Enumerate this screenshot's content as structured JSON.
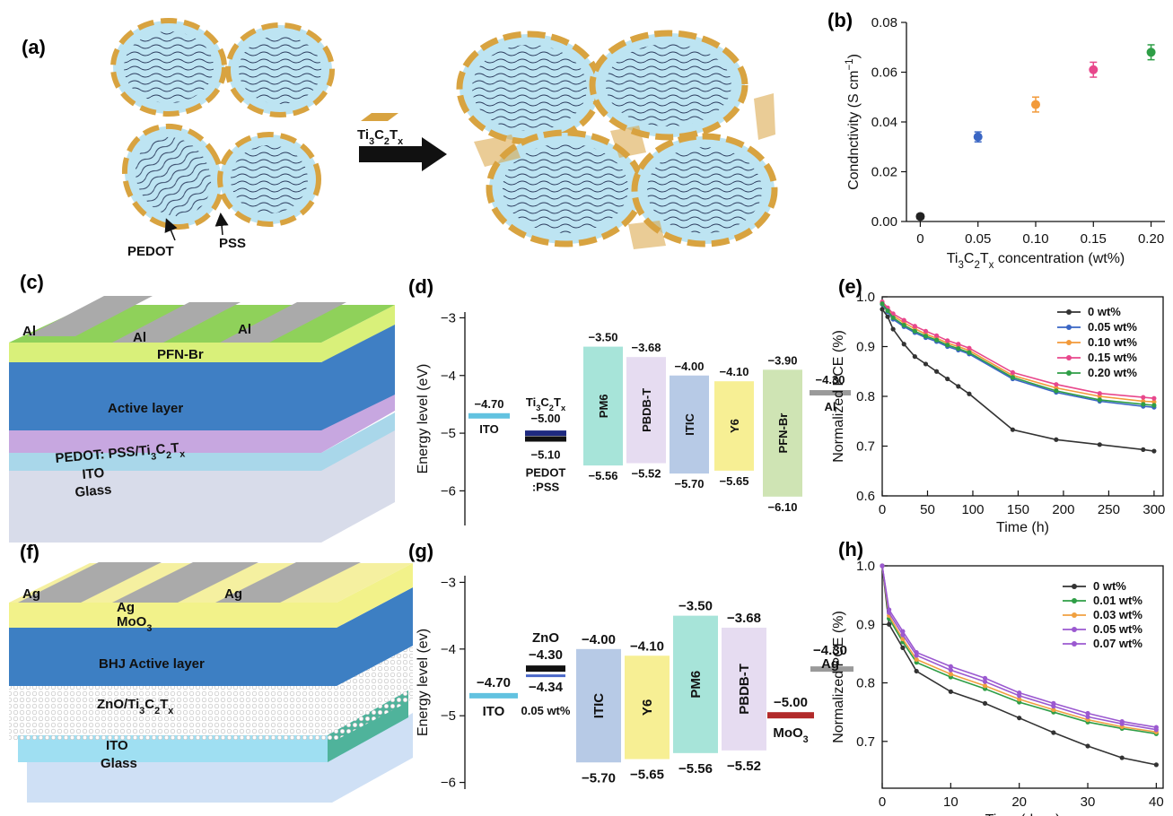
{
  "panel_labels": {
    "a": "(a)",
    "b": "(b)",
    "c": "(c)",
    "d": "(d)",
    "e": "(e)",
    "f": "(f)",
    "g": "(g)",
    "h": "(h)"
  },
  "colors": {
    "series_0": "#333333",
    "series_005": "#3a66c4",
    "series_010": "#f29a3a",
    "series_015": "#e8478c",
    "series_020": "#2e9e46",
    "series_007": "#9b59d0",
    "series_003": "#f0a040",
    "ito": "#62c2e0",
    "pm6": "#a7e4d9",
    "pbdbt": "#e6dcf1",
    "itic": "#b7cae6",
    "y6": "#f7ef94",
    "pfnbr": "#cfe4b4",
    "al": "#9a9a9a",
    "zno": "#111111",
    "moo3": "#b22a2a",
    "pedot": "#1f2a80",
    "mxene": "#d8a340",
    "micelle": "#bde4f2"
  },
  "panel_a": {
    "arrow_label": "Ti3C2Tx",
    "pedot_label": "PEDOT",
    "pss_label": "PSS"
  },
  "panel_c": {
    "al_labels": [
      "Al",
      "Al",
      "Al"
    ],
    "layers": [
      "PFN-Br",
      "Active layer",
      "PEDOT: PSS/Ti3C2Tx",
      "ITO",
      "Glass"
    ]
  },
  "panel_f": {
    "ag_labels": [
      "Ag",
      "Ag",
      "Ag"
    ],
    "layers": [
      "MoO3",
      "BHJ Active layer",
      "ZnO/Ti3C2Tx",
      "ITO",
      "Glass"
    ]
  },
  "chart_data": [
    {
      "panel": "b",
      "type": "scatter",
      "x": [
        0,
        0.05,
        0.1,
        0.15,
        0.2
      ],
      "y": [
        0.002,
        0.034,
        0.047,
        0.061,
        0.068
      ],
      "err": [
        0.001,
        0.002,
        0.003,
        0.003,
        0.003
      ],
      "point_colors": [
        "#222222",
        "#3a66c4",
        "#f29a3a",
        "#e8478c",
        "#2e9e46"
      ],
      "xticks": [
        "0",
        "0.05",
        "0.10",
        "0.15",
        "0.20"
      ],
      "yticks": [
        "0.00",
        "0.02",
        "0.04",
        "0.06",
        "0.08"
      ],
      "xlim": [
        -0.012,
        0.212
      ],
      "ylim": [
        0,
        0.08
      ],
      "xlabel": "Ti3C2Tx concentration (wt%)",
      "ylabel": "Condnctivity (S cm−1)"
    },
    {
      "panel": "d",
      "type": "energy-level",
      "ylabel": "Energy level (eV)",
      "ylim": [
        -6.6,
        -2.9
      ],
      "yticks": [
        "−3",
        "−4",
        "−5",
        "−6"
      ],
      "electrodes": [
        {
          "label": "ITO",
          "value": -4.7,
          "value_label": "−4.70",
          "color": "#62c2e0"
        },
        {
          "label": "Al",
          "value": -4.3,
          "value_label": "−4.30",
          "color": "#9a9a9a"
        }
      ],
      "htl": {
        "label_top": "Ti3C2Tx",
        "label_bottom": "PEDOT",
        "label_bottom2": ":PSS",
        "v1": -5.0,
        "v1_label": "−5.00",
        "v2": -5.1,
        "v2_label": "−5.10"
      },
      "boxes": [
        {
          "label": "PM6",
          "top": -3.5,
          "bottom": -5.56,
          "top_label": "−3.50",
          "bottom_label": "−5.56",
          "color": "#a7e4d9"
        },
        {
          "label": "PBDB-T",
          "top": -3.68,
          "bottom": -5.52,
          "top_label": "−3.68",
          "bottom_label": "−5.52",
          "color": "#e6dcf1"
        },
        {
          "label": "ITIC",
          "top": -4.0,
          "bottom": -5.7,
          "top_label": "−4.00",
          "bottom_label": "−5.70",
          "color": "#b7cae6"
        },
        {
          "label": "Y6",
          "top": -4.1,
          "bottom": -5.65,
          "top_label": "−4.10",
          "bottom_label": "−5.65",
          "color": "#f7ef94"
        },
        {
          "label": "PFN-Br",
          "top": -3.9,
          "bottom": -6.1,
          "top_label": "−3.90",
          "bottom_label": "−6.10",
          "color": "#cfe4b4"
        }
      ]
    },
    {
      "panel": "e",
      "type": "line",
      "xlabel": "Time (h)",
      "ylabel": "Normalized PCE (%)",
      "xlim": [
        0,
        310
      ],
      "ylim": [
        0.6,
        1.0
      ],
      "xticks": [
        "0",
        "50",
        "100",
        "150",
        "200",
        "250",
        "300"
      ],
      "yticks": [
        "0.6",
        "0.7",
        "0.8",
        "0.9",
        "1.0"
      ],
      "series": [
        {
          "name": "0 wt%",
          "color": "#333333",
          "x": [
            0,
            6,
            12,
            24,
            36,
            48,
            60,
            72,
            84,
            96,
            144,
            192,
            240,
            288,
            300
          ],
          "y": [
            0.975,
            0.96,
            0.935,
            0.905,
            0.88,
            0.865,
            0.85,
            0.835,
            0.82,
            0.805,
            0.733,
            0.713,
            0.703,
            0.693,
            0.69
          ]
        },
        {
          "name": "0.05 wt%",
          "color": "#3a66c4",
          "x": [
            0,
            6,
            12,
            24,
            36,
            48,
            60,
            72,
            84,
            96,
            144,
            192,
            240,
            288,
            300
          ],
          "y": [
            0.985,
            0.97,
            0.955,
            0.94,
            0.928,
            0.918,
            0.91,
            0.9,
            0.893,
            0.885,
            0.835,
            0.808,
            0.79,
            0.78,
            0.778
          ]
        },
        {
          "name": "0.10 wt%",
          "color": "#f29a3a",
          "x": [
            0,
            6,
            12,
            24,
            36,
            48,
            60,
            72,
            84,
            96,
            144,
            192,
            240,
            288,
            300
          ],
          "y": [
            0.988,
            0.975,
            0.962,
            0.948,
            0.936,
            0.925,
            0.917,
            0.907,
            0.9,
            0.892,
            0.842,
            0.817,
            0.8,
            0.79,
            0.789
          ]
        },
        {
          "name": "0.15 wt%",
          "color": "#e8478c",
          "x": [
            0,
            6,
            12,
            24,
            36,
            48,
            60,
            72,
            84,
            96,
            144,
            192,
            240,
            288,
            300
          ],
          "y": [
            0.99,
            0.978,
            0.966,
            0.953,
            0.941,
            0.931,
            0.922,
            0.912,
            0.905,
            0.897,
            0.848,
            0.824,
            0.806,
            0.798,
            0.796
          ]
        },
        {
          "name": "0.20 wt%",
          "color": "#2e9e46",
          "x": [
            0,
            6,
            12,
            24,
            36,
            48,
            60,
            72,
            84,
            96,
            144,
            192,
            240,
            288,
            300
          ],
          "y": [
            0.986,
            0.972,
            0.958,
            0.943,
            0.931,
            0.921,
            0.913,
            0.903,
            0.896,
            0.888,
            0.838,
            0.811,
            0.793,
            0.784,
            0.782
          ]
        }
      ]
    },
    {
      "panel": "g",
      "type": "energy-level",
      "ylabel": "Energy level (ev)",
      "ylim": [
        -6.1,
        -2.9
      ],
      "yticks": [
        "−3",
        "−4",
        "−5",
        "−6"
      ],
      "electrodes": [
        {
          "label": "ITO",
          "value": -4.7,
          "value_label": "−4.70",
          "color": "#62c2e0"
        },
        {
          "label": "Ag",
          "value": -4.3,
          "value_label": "−4.30",
          "color": "#9a9a9a"
        },
        {
          "label": "MoO3",
          "value": -5.0,
          "value_label": "−5.00",
          "color": "#b22a2a"
        }
      ],
      "etl": {
        "label_top": "ZnO",
        "label_bottom": "0.05 wt%",
        "v1": -4.3,
        "v1_label": "−4.30",
        "v2": -4.34,
        "v2_label": "−4.34"
      },
      "boxes": [
        {
          "label": "ITIC",
          "top": -4.0,
          "bottom": -5.7,
          "top_label": "−4.00",
          "bottom_label": "−5.70",
          "color": "#b7cae6"
        },
        {
          "label": "Y6",
          "top": -4.1,
          "bottom": -5.65,
          "top_label": "−4.10",
          "bottom_label": "−5.65",
          "color": "#f7ef94"
        },
        {
          "label": "PM6",
          "top": -3.5,
          "bottom": -5.56,
          "top_label": "−3.50",
          "bottom_label": "−5.56",
          "color": "#a7e4d9"
        },
        {
          "label": "PBDB-T",
          "top": -3.68,
          "bottom": -5.52,
          "top_label": "−3.68",
          "bottom_label": "−5.52",
          "color": "#e6dcf1"
        }
      ]
    },
    {
      "panel": "h",
      "type": "line",
      "xlabel": "Time (days)",
      "ylabel": "Normalized PCE (%)",
      "xlim": [
        0,
        41
      ],
      "ylim": [
        0.62,
        1.0
      ],
      "xticks": [
        "0",
        "10",
        "20",
        "30",
        "40"
      ],
      "yticks": [
        "0.7",
        "0.8",
        "0.9",
        "1.0"
      ],
      "series": [
        {
          "name": "0 wt%",
          "color": "#333333",
          "x": [
            0,
            1,
            3,
            5,
            10,
            15,
            20,
            25,
            30,
            35,
            40
          ],
          "y": [
            1.0,
            0.9,
            0.86,
            0.82,
            0.785,
            0.765,
            0.74,
            0.715,
            0.692,
            0.672,
            0.66
          ]
        },
        {
          "name": "0.01 wt%",
          "color": "#2e9e46",
          "x": [
            0,
            1,
            3,
            5,
            10,
            15,
            20,
            25,
            30,
            35,
            40
          ],
          "y": [
            1.0,
            0.91,
            0.87,
            0.835,
            0.81,
            0.79,
            0.767,
            0.75,
            0.733,
            0.722,
            0.713
          ]
        },
        {
          "name": "0.03 wt%",
          "color": "#f0a040",
          "x": [
            0,
            1,
            3,
            5,
            10,
            15,
            20,
            25,
            30,
            35,
            40
          ],
          "y": [
            1.0,
            0.915,
            0.875,
            0.84,
            0.815,
            0.795,
            0.772,
            0.754,
            0.737,
            0.725,
            0.716
          ]
        },
        {
          "name": "0.05 wt%",
          "color": "#9b59d0",
          "x": [
            0,
            1,
            3,
            5,
            10,
            15,
            20,
            25,
            30,
            35,
            40
          ],
          "y": [
            1.0,
            0.92,
            0.882,
            0.847,
            0.822,
            0.802,
            0.778,
            0.76,
            0.742,
            0.73,
            0.72
          ]
        },
        {
          "name": "0.07 wt%",
          "color": "#9b59d0",
          "x": [
            0,
            1,
            3,
            5,
            10,
            15,
            20,
            25,
            30,
            35,
            40
          ],
          "y": [
            1.0,
            0.925,
            0.888,
            0.852,
            0.828,
            0.808,
            0.783,
            0.765,
            0.748,
            0.734,
            0.724
          ]
        }
      ]
    }
  ]
}
